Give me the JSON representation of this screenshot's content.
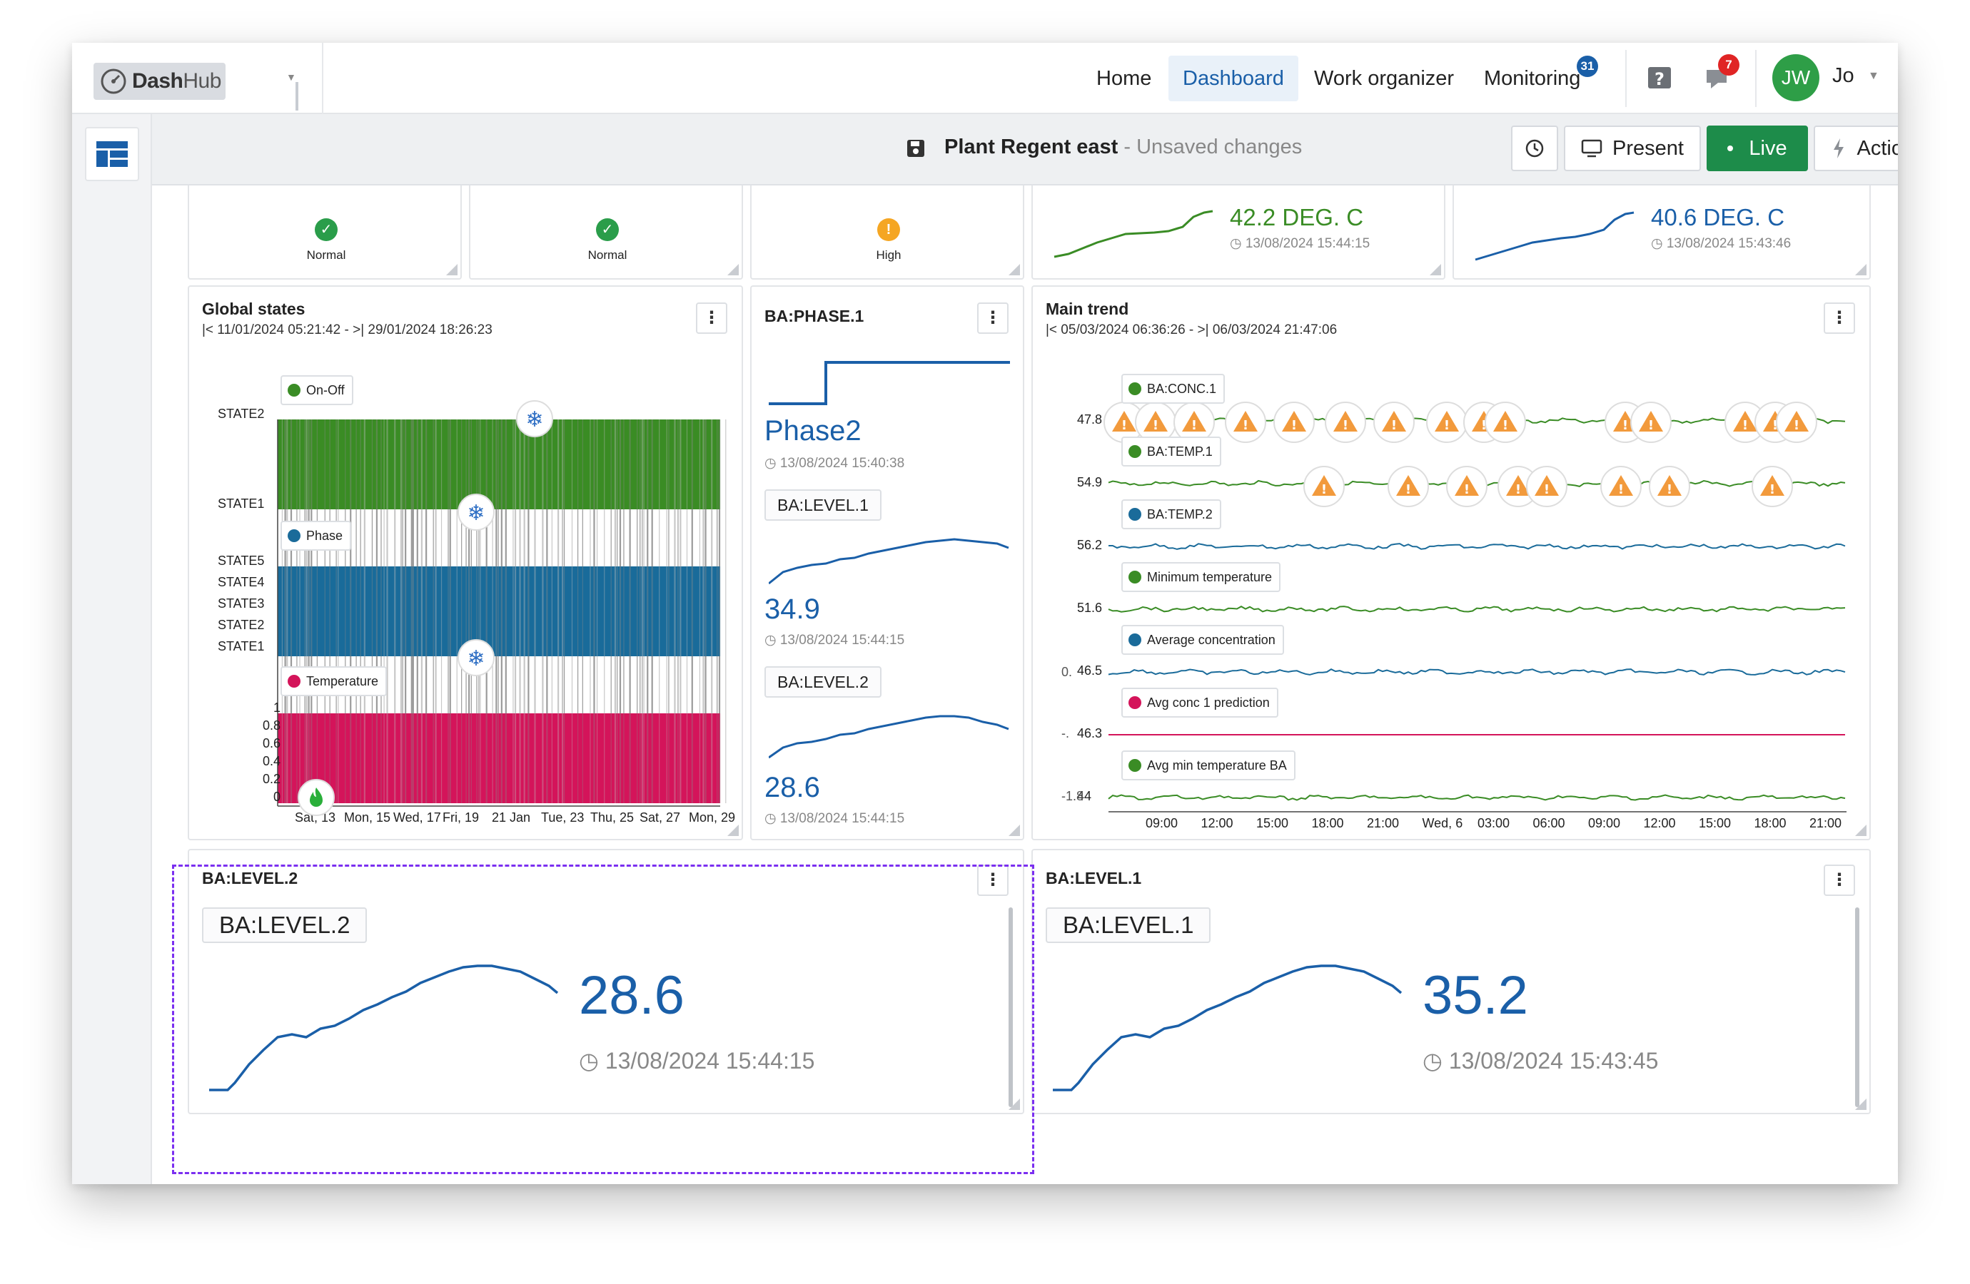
{
  "app": {
    "logo": "DashHub",
    "logo_bold": "Dash",
    "logo_rest": "Hub"
  },
  "nav": {
    "items": [
      {
        "label": "Home"
      },
      {
        "label": "Dashboard"
      },
      {
        "label": "Work organizer"
      },
      {
        "label": "Monitoring"
      }
    ],
    "monitoring_badge": "31",
    "notification_badge": "7",
    "avatar_initials": "JW",
    "user_name": "Jo"
  },
  "toolbar": {
    "title": "Plant Regent east",
    "unsaved": " - Unsaved changes",
    "present_label": "Present",
    "live_label": "Live",
    "actions_label": "Actions"
  },
  "status_cards": [
    {
      "label": "Normal",
      "state": "ok"
    },
    {
      "label": "Normal",
      "state": "ok"
    },
    {
      "label": "High",
      "state": "warn"
    }
  ],
  "mini_trends": [
    {
      "value": "42.2 DEG. C",
      "time": "13/08/2024 15:44:15",
      "color": "#3a8c25"
    },
    {
      "value": "40.6 DEG. C",
      "time": "13/08/2024 15:43:46",
      "color": "#1a5fa8"
    }
  ],
  "global_states": {
    "title": "Global states",
    "range": "|< 11/01/2024 05:21:42 - >| 29/01/2024 18:26:23",
    "legend": [
      {
        "label": "On-Off",
        "color": "#3a8c25"
      },
      {
        "label": "Phase",
        "color": "#1a6b9a"
      },
      {
        "label": "Temperature",
        "color": "#d4145a"
      }
    ],
    "y_labels_onoff": [
      "STATE2",
      "STATE1"
    ],
    "y_labels_phase": [
      "STATE5",
      "STATE4",
      "STATE3",
      "STATE2",
      "STATE1"
    ],
    "y_labels_temp": [
      "1",
      "0.8",
      "0.6",
      "0.4",
      "0.2",
      "0"
    ],
    "x_labels": [
      "Sat, 13",
      "Mon, 15",
      "Wed, 17",
      "Fri, 19",
      "21 Jan",
      "Tue, 23",
      "Thu, 25",
      "Sat, 27",
      "Mon, 29"
    ]
  },
  "phase_card": {
    "title": "BA:PHASE.1",
    "value": "Phase2",
    "time": "13/08/2024 15:40:38",
    "level1_tag": "BA:LEVEL.1",
    "level1_value": "34.9",
    "level1_time": "13/08/2024 15:44:15",
    "level2_tag": "BA:LEVEL.2",
    "level2_value": "28.6",
    "level2_time": "13/08/2024 15:44:15"
  },
  "main_trend": {
    "title": "Main trend",
    "range": "|< 05/03/2024 06:36:26 - >| 06/03/2024 21:47:06",
    "series": [
      {
        "label": "BA:CONC.1",
        "color": "#3a8c25",
        "axis": "47.8"
      },
      {
        "label": "BA:TEMP.1",
        "color": "#3a8c25",
        "axis": "54.9"
      },
      {
        "label": "BA:TEMP.2",
        "color": "#1a6b9a",
        "axis": "56.2"
      },
      {
        "label": "Minimum temperature",
        "color": "#3a8c25",
        "axis": "51.6"
      },
      {
        "label": "Average concentration",
        "color": "#1a6b9a",
        "axis": "46.5"
      },
      {
        "label": "Avg conc 1 prediction",
        "color": "#d4145a",
        "axis": "46.3"
      },
      {
        "label": "Avg min temperature BA",
        "color": "#3a8c25",
        "axis": "44"
      }
    ],
    "extra_axis": [
      "0.",
      "-.",
      "-1.8"
    ],
    "x_labels": [
      "09:00",
      "12:00",
      "15:00",
      "18:00",
      "21:00",
      "Wed, 6",
      "03:00",
      "06:00",
      "09:00",
      "12:00",
      "15:00",
      "18:00",
      "21:00"
    ]
  },
  "level2_card": {
    "title": "BA:LEVEL.2",
    "tag": "BA:LEVEL.2",
    "value": "28.6",
    "time": "13/08/2024 15:44:15"
  },
  "level1_card": {
    "title": "BA:LEVEL.1",
    "tag": "BA:LEVEL.1",
    "value": "35.2",
    "time": "13/08/2024 15:43:45"
  }
}
